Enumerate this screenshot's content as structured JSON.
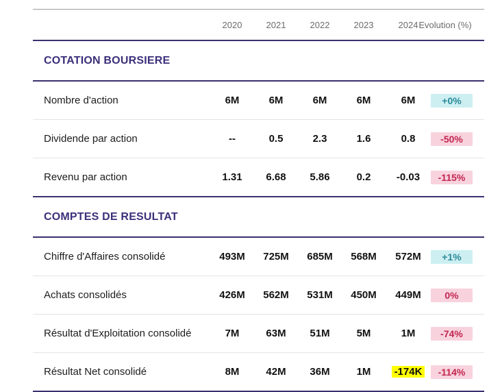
{
  "columns": [
    "2020",
    "2021",
    "2022",
    "2023",
    "2024"
  ],
  "evolution_header": "Evolution (%)",
  "sections": [
    {
      "title": "COTATION BOURSIERE",
      "rows": [
        {
          "label": "Nombre d'action",
          "values": [
            "6M",
            "6M",
            "6M",
            "6M",
            "6M"
          ],
          "evolution": "+0%",
          "trend": "positive"
        },
        {
          "label": "Dividende par action",
          "values": [
            "--",
            "0.5",
            "2.3",
            "1.6",
            "0.8"
          ],
          "evolution": "-50%",
          "trend": "negative"
        },
        {
          "label": "Revenu par action",
          "values": [
            "1.31",
            "6.68",
            "5.86",
            "0.2",
            "-0.03"
          ],
          "evolution": "-115%",
          "trend": "negative"
        }
      ]
    },
    {
      "title": "COMPTES DE RESULTAT",
      "rows": [
        {
          "label": "Chiffre d'Affaires consolidé",
          "values": [
            "493M",
            "725M",
            "685M",
            "568M",
            "572M"
          ],
          "evolution": "+1%",
          "trend": "positive"
        },
        {
          "label": "Achats consolidés",
          "values": [
            "426M",
            "562M",
            "531M",
            "450M",
            "449M"
          ],
          "evolution": "0%",
          "trend": "negative"
        },
        {
          "label": "Résultat d'Exploitation consolidé",
          "values": [
            "7M",
            "63M",
            "51M",
            "5M",
            "1M"
          ],
          "evolution": "-74%",
          "trend": "negative"
        },
        {
          "label": "Résultat Net consolidé",
          "values": [
            "8M",
            "42M",
            "36M",
            "1M",
            "-174K"
          ],
          "evolution": "-114%",
          "trend": "negative",
          "highlight_index": 4
        }
      ]
    }
  ],
  "colors": {
    "section_title": "#3b2f7a",
    "rule": "#3b2f6e",
    "positive_bg": "#cdeff2",
    "positive_text": "#2a8a98",
    "negative_bg": "#f8d3de",
    "negative_text": "#c2264f",
    "highlight": "#ffff00"
  }
}
